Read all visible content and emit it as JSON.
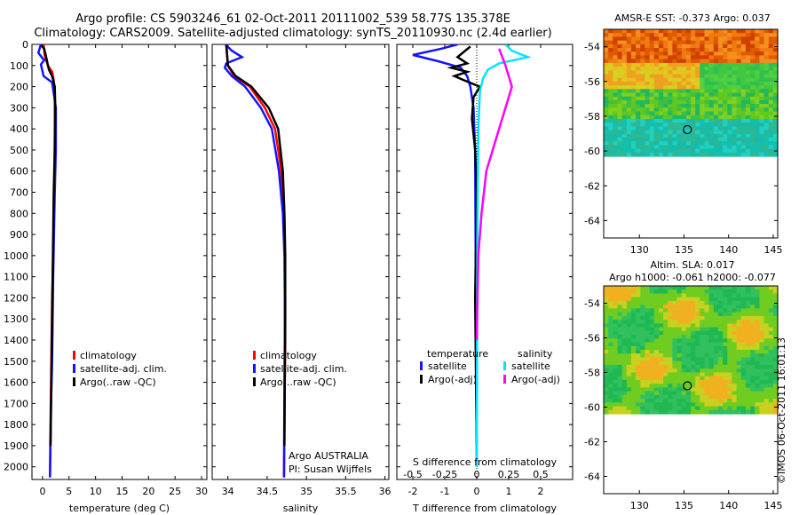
{
  "header": {
    "title_line1": "Argo profile: CS 5903246_61 02-Oct-2011 20111002_539 58.77S 135.378E",
    "title_line2": "Climatology: CARS2009. Satellite-adjusted climatology: synTS_20110930.nc (2.4d earlier)"
  },
  "stamp": "©IMOS 06-Oct-2011 16:01:13",
  "colors": {
    "climatology": "#ff0000",
    "satellite": "#1414ff",
    "argo": "#000000",
    "satellite_s": "#00e5ff",
    "argo_s": "#ff00ff"
  },
  "chart_data": [
    {
      "type": "line",
      "id": "temperature",
      "xlabel": "temperature (deg C)",
      "ylabel": "",
      "xlim": [
        -2,
        31
      ],
      "ylim": [
        0,
        2060
      ],
      "y_reversed": true,
      "xticks": [
        "0",
        "5",
        "10",
        "15",
        "20",
        "25",
        "30"
      ],
      "yticks": [
        "0",
        "100",
        "200",
        "300",
        "400",
        "500",
        "600",
        "700",
        "800",
        "900",
        "1000",
        "1100",
        "1200",
        "1300",
        "1400",
        "1500",
        "1600",
        "1700",
        "1800",
        "1900",
        "2000"
      ],
      "legend": [
        "climatology",
        "satellite-adj. clim.",
        "Argo(..raw -QC)"
      ],
      "series": [
        {
          "name": "climatology",
          "x": [
            0.2,
            0.4,
            1.0,
            1.8,
            2.1,
            2.3,
            2.3,
            2.25,
            2.15,
            2.0,
            1.9,
            1.8,
            1.75,
            1.7,
            1.65,
            1.6,
            1.55,
            1.5,
            1.45,
            1.4
          ],
          "y": [
            0,
            50,
            100,
            130,
            170,
            250,
            400,
            600,
            800,
            1000,
            1100,
            1200,
            1300,
            1400,
            1500,
            1600,
            1700,
            1800,
            1900,
            2050
          ]
        },
        {
          "name": "satellite-adj. clim.",
          "x": [
            -0.3,
            -0.8,
            0.3,
            -0.3,
            0.2,
            1.8,
            2.5,
            2.5,
            2.3,
            2.15,
            2.0,
            1.9,
            1.8,
            1.7,
            1.6,
            1.5,
            1.4
          ],
          "y": [
            0,
            40,
            75,
            95,
            150,
            180,
            300,
            500,
            700,
            900,
            1100,
            1300,
            1500,
            1600,
            1700,
            1900,
            2050
          ]
        },
        {
          "name": "Argo(..raw -QC)",
          "x": [
            -0.2,
            0.3,
            0.6,
            0.8,
            1.2,
            1.8,
            2.3,
            2.4,
            2.3,
            2.1,
            2.0,
            1.9,
            1.8,
            1.7,
            1.6,
            1.5
          ],
          "y": [
            5,
            20,
            50,
            75,
            120,
            150,
            200,
            300,
            500,
            700,
            900,
            1100,
            1300,
            1500,
            1700,
            1900
          ]
        }
      ]
    },
    {
      "type": "line",
      "id": "salinity",
      "xlabel": "salinity",
      "xlim": [
        33.8,
        36.05
      ],
      "ylim": [
        0,
        2060
      ],
      "y_reversed": true,
      "xticks": [
        "34",
        "34.5",
        "35",
        "35.5",
        "36"
      ],
      "legend": [
        "climatology",
        "satellite-adj. clim.",
        "Argo(..raw -QC)"
      ],
      "annotation": [
        "Argo AUSTRALIA",
        "PI: Susan Wijffels"
      ],
      "series": [
        {
          "name": "climatology",
          "x": [
            33.98,
            33.99,
            34.0,
            34.08,
            34.28,
            34.47,
            34.6,
            34.68,
            34.71,
            34.725,
            34.73,
            34.73,
            34.725,
            34.72,
            34.715
          ],
          "y": [
            0,
            50,
            100,
            150,
            200,
            300,
            400,
            600,
            800,
            1000,
            1200,
            1400,
            1600,
            1800,
            2050
          ]
        },
        {
          "name": "satellite-adj. clim.",
          "x": [
            33.97,
            34.05,
            34.18,
            33.98,
            33.96,
            34.05,
            34.22,
            34.42,
            34.56,
            34.65,
            34.7,
            34.72,
            34.725,
            34.725,
            34.72,
            34.715
          ],
          "y": [
            0,
            30,
            60,
            90,
            110,
            150,
            200,
            300,
            400,
            600,
            800,
            1000,
            1200,
            1400,
            1600,
            2050
          ]
        },
        {
          "name": "Argo(..raw -QC)",
          "x": [
            33.98,
            33.99,
            34.0,
            34.1,
            34.3,
            34.52,
            34.64,
            34.7,
            34.72,
            34.73,
            34.73,
            34.725,
            34.72
          ],
          "y": [
            5,
            50,
            100,
            150,
            200,
            300,
            400,
            600,
            800,
            1000,
            1300,
            1600,
            1900
          ]
        }
      ]
    },
    {
      "type": "line",
      "id": "difference",
      "xlabel": "T difference from climatology",
      "toplabel": "S difference from climatology",
      "xlim": [
        -2.5,
        3
      ],
      "ylim": [
        0,
        2060
      ],
      "y_reversed": true,
      "xticks": [
        "-2",
        "-1",
        "0",
        "1",
        "2"
      ],
      "sticks": [
        "-0.5",
        "-0.25",
        "0",
        "0.25",
        "0.5"
      ],
      "legend_titles": [
        "temperature",
        "salinity"
      ],
      "legend": [
        "satellite",
        "Argo(-adj)",
        "satellite",
        "Argo(-adj)"
      ],
      "series": [
        {
          "name": "satellite",
          "x": [
            -0.6,
            -1.1,
            -2.0,
            -1.2,
            -0.5,
            -0.3,
            -0.2,
            -0.1,
            -0.05,
            0.0
          ],
          "y": [
            0,
            20,
            50,
            80,
            110,
            150,
            200,
            300,
            500,
            2000
          ]
        },
        {
          "name": "Argo(-adj)",
          "x": [
            -0.2,
            -0.6,
            -0.3,
            -0.8,
            -0.3,
            -0.7,
            -0.4,
            0.1,
            -0.1,
            -0.15,
            -0.05,
            0.0,
            -0.05,
            0.0
          ],
          "y": [
            10,
            60,
            90,
            110,
            130,
            150,
            170,
            200,
            250,
            350,
            500,
            700,
            1200,
            1900
          ]
        },
        {
          "name": "satellite",
          "x": [
            0.9,
            1.1,
            1.6,
            0.7,
            0.35,
            0.2,
            0.1,
            0.05,
            0.02,
            0.0
          ],
          "y": [
            0,
            30,
            60,
            90,
            120,
            160,
            220,
            400,
            900,
            2000
          ]
        },
        {
          "name": "Argo(-adj)",
          "x": [
            0.7,
            0.8,
            0.9,
            1.0,
            1.1,
            0.9,
            0.7,
            0.5,
            0.3,
            0.15,
            0.05,
            0.0
          ],
          "y": [
            20,
            60,
            100,
            150,
            200,
            300,
            400,
            500,
            600,
            800,
            1000,
            1400
          ]
        }
      ]
    }
  ],
  "maps": [
    {
      "id": "sst-map",
      "label1": "AMSR-E SST: -0.373 Argo: 0.037",
      "label2": "",
      "yticks": [
        "-54",
        "-56",
        "-58",
        "-60",
        "-62",
        "-64"
      ],
      "xticks": [
        "130",
        "135",
        "140",
        "145"
      ]
    },
    {
      "id": "sla-map",
      "label1": "Altim. SLA: 0.017",
      "label2": "Argo h1000: -0.061 h2000: -0.077",
      "yticks": [
        "-54",
        "-56",
        "-58",
        "-60",
        "-62",
        "-64"
      ],
      "xticks": [
        "130",
        "135",
        "140",
        "145"
      ]
    }
  ]
}
